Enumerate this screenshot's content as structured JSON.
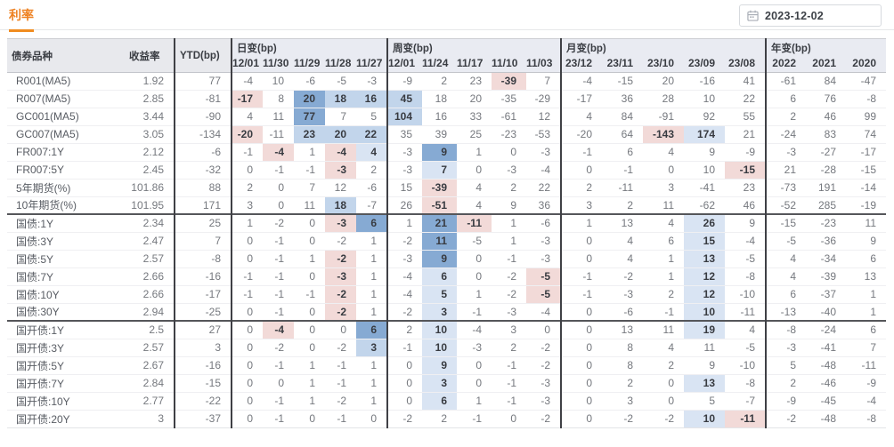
{
  "header": {
    "title": "利率",
    "date_value": "2023-12-02",
    "calendar_icon": "calendar"
  },
  "colors": {
    "accent_orange": "#ee8223",
    "heat_blue_strong": "#86aad3",
    "heat_blue_medium": "#c2d5eb",
    "heat_blue_light": "#d9e4f3",
    "heat_pink": "#f2dad8",
    "header_bg": "#e9ebf2"
  },
  "table": {
    "bond_col": "债券品种",
    "yield_col": "收益率",
    "ytd_col": "YTD(bp)",
    "groups": [
      {
        "label": "日变(bp)",
        "cols": [
          "12/01",
          "11/30",
          "11/29",
          "11/28",
          "11/27"
        ]
      },
      {
        "label": "周变(bp)",
        "cols": [
          "12/01",
          "11/24",
          "11/17",
          "11/10",
          "11/03"
        ]
      },
      {
        "label": "月变(bp)",
        "cols": [
          "23/12",
          "23/11",
          "23/10",
          "23/09",
          "23/08"
        ]
      },
      {
        "label": "年变(bp)",
        "cols": [
          "2022",
          "2021",
          "2020"
        ]
      }
    ],
    "rows": [
      {
        "name": "R001(MA5)",
        "yield": "1.92",
        "ytd": "77",
        "values": [
          -4,
          10,
          -6,
          -5,
          -3,
          -9,
          2,
          23,
          -39,
          7,
          -4,
          -15,
          20,
          -16,
          41,
          -61,
          84,
          -47
        ],
        "hl": {
          "8": "r1"
        }
      },
      {
        "name": "R007(MA5)",
        "yield": "2.85",
        "ytd": "-81",
        "values": [
          -17,
          8,
          20,
          18,
          16,
          45,
          18,
          20,
          -35,
          -29,
          -17,
          36,
          28,
          10,
          22,
          6,
          76,
          -8
        ],
        "hl": {
          "0": "r1",
          "2": "b3",
          "3": "b2",
          "4": "b2",
          "5": "b2"
        }
      },
      {
        "name": "GC001(MA5)",
        "yield": "3.44",
        "ytd": "-90",
        "values": [
          4,
          11,
          77,
          7,
          5,
          104,
          16,
          33,
          -61,
          12,
          4,
          84,
          -91,
          92,
          55,
          2,
          46,
          99
        ],
        "hl": {
          "2": "b3",
          "5": "b2"
        }
      },
      {
        "name": "GC007(MA5)",
        "yield": "3.05",
        "ytd": "-134",
        "values": [
          -20,
          -11,
          23,
          20,
          22,
          35,
          39,
          25,
          -23,
          -53,
          -20,
          64,
          -143,
          174,
          21,
          -24,
          83,
          74
        ],
        "hl": {
          "0": "r1",
          "2": "b2",
          "3": "b2",
          "4": "b2",
          "12": "r1",
          "13": "b1"
        }
      },
      {
        "name": "FR007:1Y",
        "yield": "2.12",
        "ytd": "-6",
        "values": [
          -1,
          -4,
          1,
          -4,
          4,
          -3,
          9,
          1,
          0,
          -3,
          -1,
          6,
          4,
          9,
          -9,
          -3,
          -27,
          -17
        ],
        "hl": {
          "1": "r1",
          "3": "r1",
          "4": "b1",
          "6": "b3"
        }
      },
      {
        "name": "FR007:5Y",
        "yield": "2.45",
        "ytd": "-32",
        "values": [
          0,
          -1,
          -1,
          -3,
          2,
          -3,
          7,
          0,
          -3,
          -4,
          0,
          -1,
          0,
          10,
          -15,
          21,
          -28,
          -15
        ],
        "hl": {
          "3": "r1",
          "6": "b1",
          "14": "r1"
        }
      },
      {
        "name": "5年期货(%)",
        "yield": "101.86",
        "ytd": "88",
        "values": [
          2,
          0,
          7,
          12,
          -6,
          15,
          -39,
          4,
          2,
          22,
          2,
          -11,
          3,
          -41,
          23,
          -73,
          191,
          -14
        ],
        "hl": {
          "6": "r1"
        }
      },
      {
        "name": "10年期货(%)",
        "yield": "101.95",
        "ytd": "171",
        "values": [
          3,
          0,
          11,
          18,
          -7,
          26,
          -51,
          4,
          9,
          36,
          3,
          2,
          11,
          -62,
          46,
          -52,
          285,
          -19
        ],
        "hl": {
          "3": "b2",
          "6": "r1"
        }
      },
      {
        "name": "国债:1Y",
        "yield": "2.34",
        "ytd": "25",
        "values": [
          1,
          -2,
          0,
          -3,
          6,
          1,
          21,
          -11,
          1,
          -6,
          1,
          13,
          4,
          26,
          9,
          -15,
          -23,
          11
        ],
        "hl": {
          "3": "r1",
          "4": "b3",
          "6": "b3",
          "7": "r1",
          "13": "b1"
        }
      },
      {
        "name": "国债:3Y",
        "yield": "2.47",
        "ytd": "7",
        "values": [
          0,
          -1,
          0,
          -2,
          1,
          -2,
          11,
          -5,
          1,
          -3,
          0,
          4,
          6,
          15,
          -4,
          -5,
          -36,
          9
        ],
        "hl": {
          "6": "b3",
          "13": "b1"
        }
      },
      {
        "name": "国债:5Y",
        "yield": "2.57",
        "ytd": "-8",
        "values": [
          0,
          -1,
          1,
          -2,
          1,
          -3,
          9,
          0,
          -1,
          -3,
          0,
          4,
          1,
          13,
          -5,
          4,
          -34,
          6
        ],
        "hl": {
          "3": "r1",
          "6": "b3",
          "13": "b1"
        }
      },
      {
        "name": "国债:7Y",
        "yield": "2.66",
        "ytd": "-16",
        "values": [
          -1,
          -1,
          0,
          -3,
          1,
          -4,
          6,
          0,
          -2,
          -5,
          -1,
          -2,
          1,
          12,
          -8,
          4,
          -39,
          13
        ],
        "hl": {
          "3": "r1",
          "6": "b1",
          "9": "r1",
          "13": "b1"
        }
      },
      {
        "name": "国债:10Y",
        "yield": "2.66",
        "ytd": "-17",
        "values": [
          -1,
          -1,
          -1,
          -2,
          1,
          -4,
          5,
          1,
          -2,
          -5,
          -1,
          -3,
          2,
          12,
          -10,
          6,
          -37,
          1
        ],
        "hl": {
          "3": "r1",
          "6": "b1",
          "9": "r1",
          "13": "b1"
        }
      },
      {
        "name": "国债:30Y",
        "yield": "2.94",
        "ytd": "-25",
        "values": [
          0,
          -1,
          0,
          -2,
          1,
          -2,
          3,
          -1,
          -3,
          -4,
          0,
          -6,
          -1,
          10,
          -11,
          -13,
          -40,
          1
        ],
        "hl": {
          "3": "r1",
          "6": "b1",
          "13": "b1"
        }
      },
      {
        "name": "国开债:1Y",
        "yield": "2.5",
        "ytd": "27",
        "values": [
          0,
          -4,
          0,
          0,
          6,
          2,
          10,
          -4,
          3,
          0,
          0,
          13,
          11,
          19,
          4,
          -8,
          -24,
          6
        ],
        "hl": {
          "1": "r1",
          "4": "b3",
          "6": "b1",
          "13": "b1"
        }
      },
      {
        "name": "国开债:3Y",
        "yield": "2.57",
        "ytd": "3",
        "values": [
          0,
          -2,
          0,
          -2,
          3,
          -1,
          10,
          -3,
          2,
          -2,
          0,
          8,
          4,
          11,
          -5,
          -3,
          -41,
          7
        ],
        "hl": {
          "4": "b2",
          "6": "b1"
        }
      },
      {
        "name": "国开债:5Y",
        "yield": "2.67",
        "ytd": "-16",
        "values": [
          0,
          -1,
          1,
          -1,
          1,
          0,
          9,
          0,
          -1,
          -2,
          0,
          8,
          2,
          9,
          -10,
          5,
          -48,
          -11
        ],
        "hl": {
          "6": "b1"
        }
      },
      {
        "name": "国开债:7Y",
        "yield": "2.84",
        "ytd": "-15",
        "values": [
          0,
          0,
          1,
          -1,
          1,
          0,
          3,
          0,
          -1,
          -3,
          0,
          2,
          0,
          13,
          -8,
          2,
          -46,
          -9
        ],
        "hl": {
          "6": "b1",
          "13": "b1"
        }
      },
      {
        "name": "国开债:10Y",
        "yield": "2.77",
        "ytd": "-22",
        "values": [
          0,
          -1,
          1,
          -2,
          1,
          0,
          6,
          1,
          -1,
          -3,
          0,
          3,
          0,
          5,
          -7,
          -9,
          -45,
          -4
        ],
        "hl": {
          "6": "b1"
        }
      },
      {
        "name": "国开债:20Y",
        "yield": "3",
        "ytd": "-37",
        "values": [
          0,
          -1,
          0,
          -1,
          0,
          -2,
          2,
          -1,
          0,
          -2,
          0,
          -2,
          -2,
          10,
          -11,
          -2,
          -48,
          -8
        ],
        "hl": {
          "13": "b1",
          "14": "r1"
        }
      }
    ],
    "group_start_rows": {
      "4": "med",
      "8": "dark",
      "14": "dark"
    },
    "col_widths": {
      "name": 132,
      "yield": 56,
      "ytd": 64,
      "day": 35,
      "week": 39,
      "month": 46,
      "year": 45
    }
  }
}
